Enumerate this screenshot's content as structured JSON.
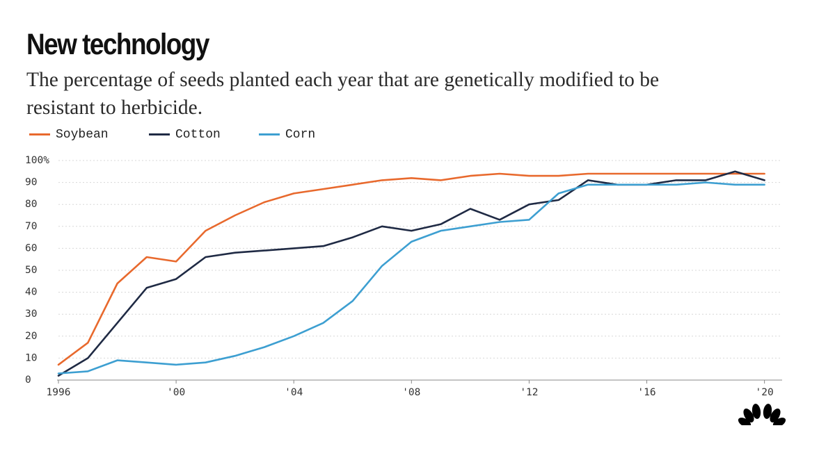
{
  "chart_data": {
    "type": "line",
    "title": "New technology",
    "subtitle": "The percentage of seeds planted each year that are genetically modified to be resistant to herbicide.",
    "xlabel": "",
    "ylabel": "",
    "xlim": [
      1996,
      2020.6
    ],
    "ylim": [
      0,
      100
    ],
    "grid": true,
    "legend_position": "top-left",
    "y_ticks": [
      0,
      10,
      20,
      30,
      40,
      50,
      60,
      70,
      80,
      90,
      100
    ],
    "y_tick_labels": [
      "0",
      "10",
      "20",
      "30",
      "40",
      "50",
      "60",
      "70",
      "80",
      "90",
      "100%"
    ],
    "x_ticks": [
      1996,
      2000,
      2004,
      2008,
      2012,
      2016,
      2020
    ],
    "x_tick_labels": [
      "1996",
      "'00",
      "'04",
      "'08",
      "'12",
      "'16",
      "'20"
    ],
    "x": [
      1996,
      1997,
      1998,
      1999,
      2000,
      2001,
      2002,
      2003,
      2004,
      2005,
      2006,
      2007,
      2008,
      2009,
      2010,
      2011,
      2012,
      2013,
      2014,
      2015,
      2016,
      2017,
      2018,
      2019,
      2020
    ],
    "series": [
      {
        "name": "Soybean",
        "color": "#e8692d",
        "values": [
          7,
          17,
          44,
          56,
          54,
          68,
          75,
          81,
          85,
          87,
          89,
          91,
          92,
          91,
          93,
          94,
          93,
          93,
          94,
          94,
          94,
          94,
          94,
          94,
          94
        ]
      },
      {
        "name": "Cotton",
        "color": "#1f2a44",
        "values": [
          2,
          10,
          26,
          42,
          46,
          56,
          58,
          59,
          60,
          61,
          65,
          70,
          68,
          71,
          78,
          73,
          80,
          82,
          91,
          89,
          89,
          91,
          91,
          95,
          91
        ]
      },
      {
        "name": "Corn",
        "color": "#3d9fd1",
        "values": [
          3,
          4,
          9,
          8,
          7,
          8,
          11,
          15,
          20,
          26,
          36,
          52,
          63,
          68,
          70,
          72,
          73,
          85,
          89,
          89,
          89,
          89,
          90,
          89,
          89
        ]
      }
    ]
  },
  "logo": {
    "name": "nbc-peacock-icon",
    "color": "#000000"
  }
}
